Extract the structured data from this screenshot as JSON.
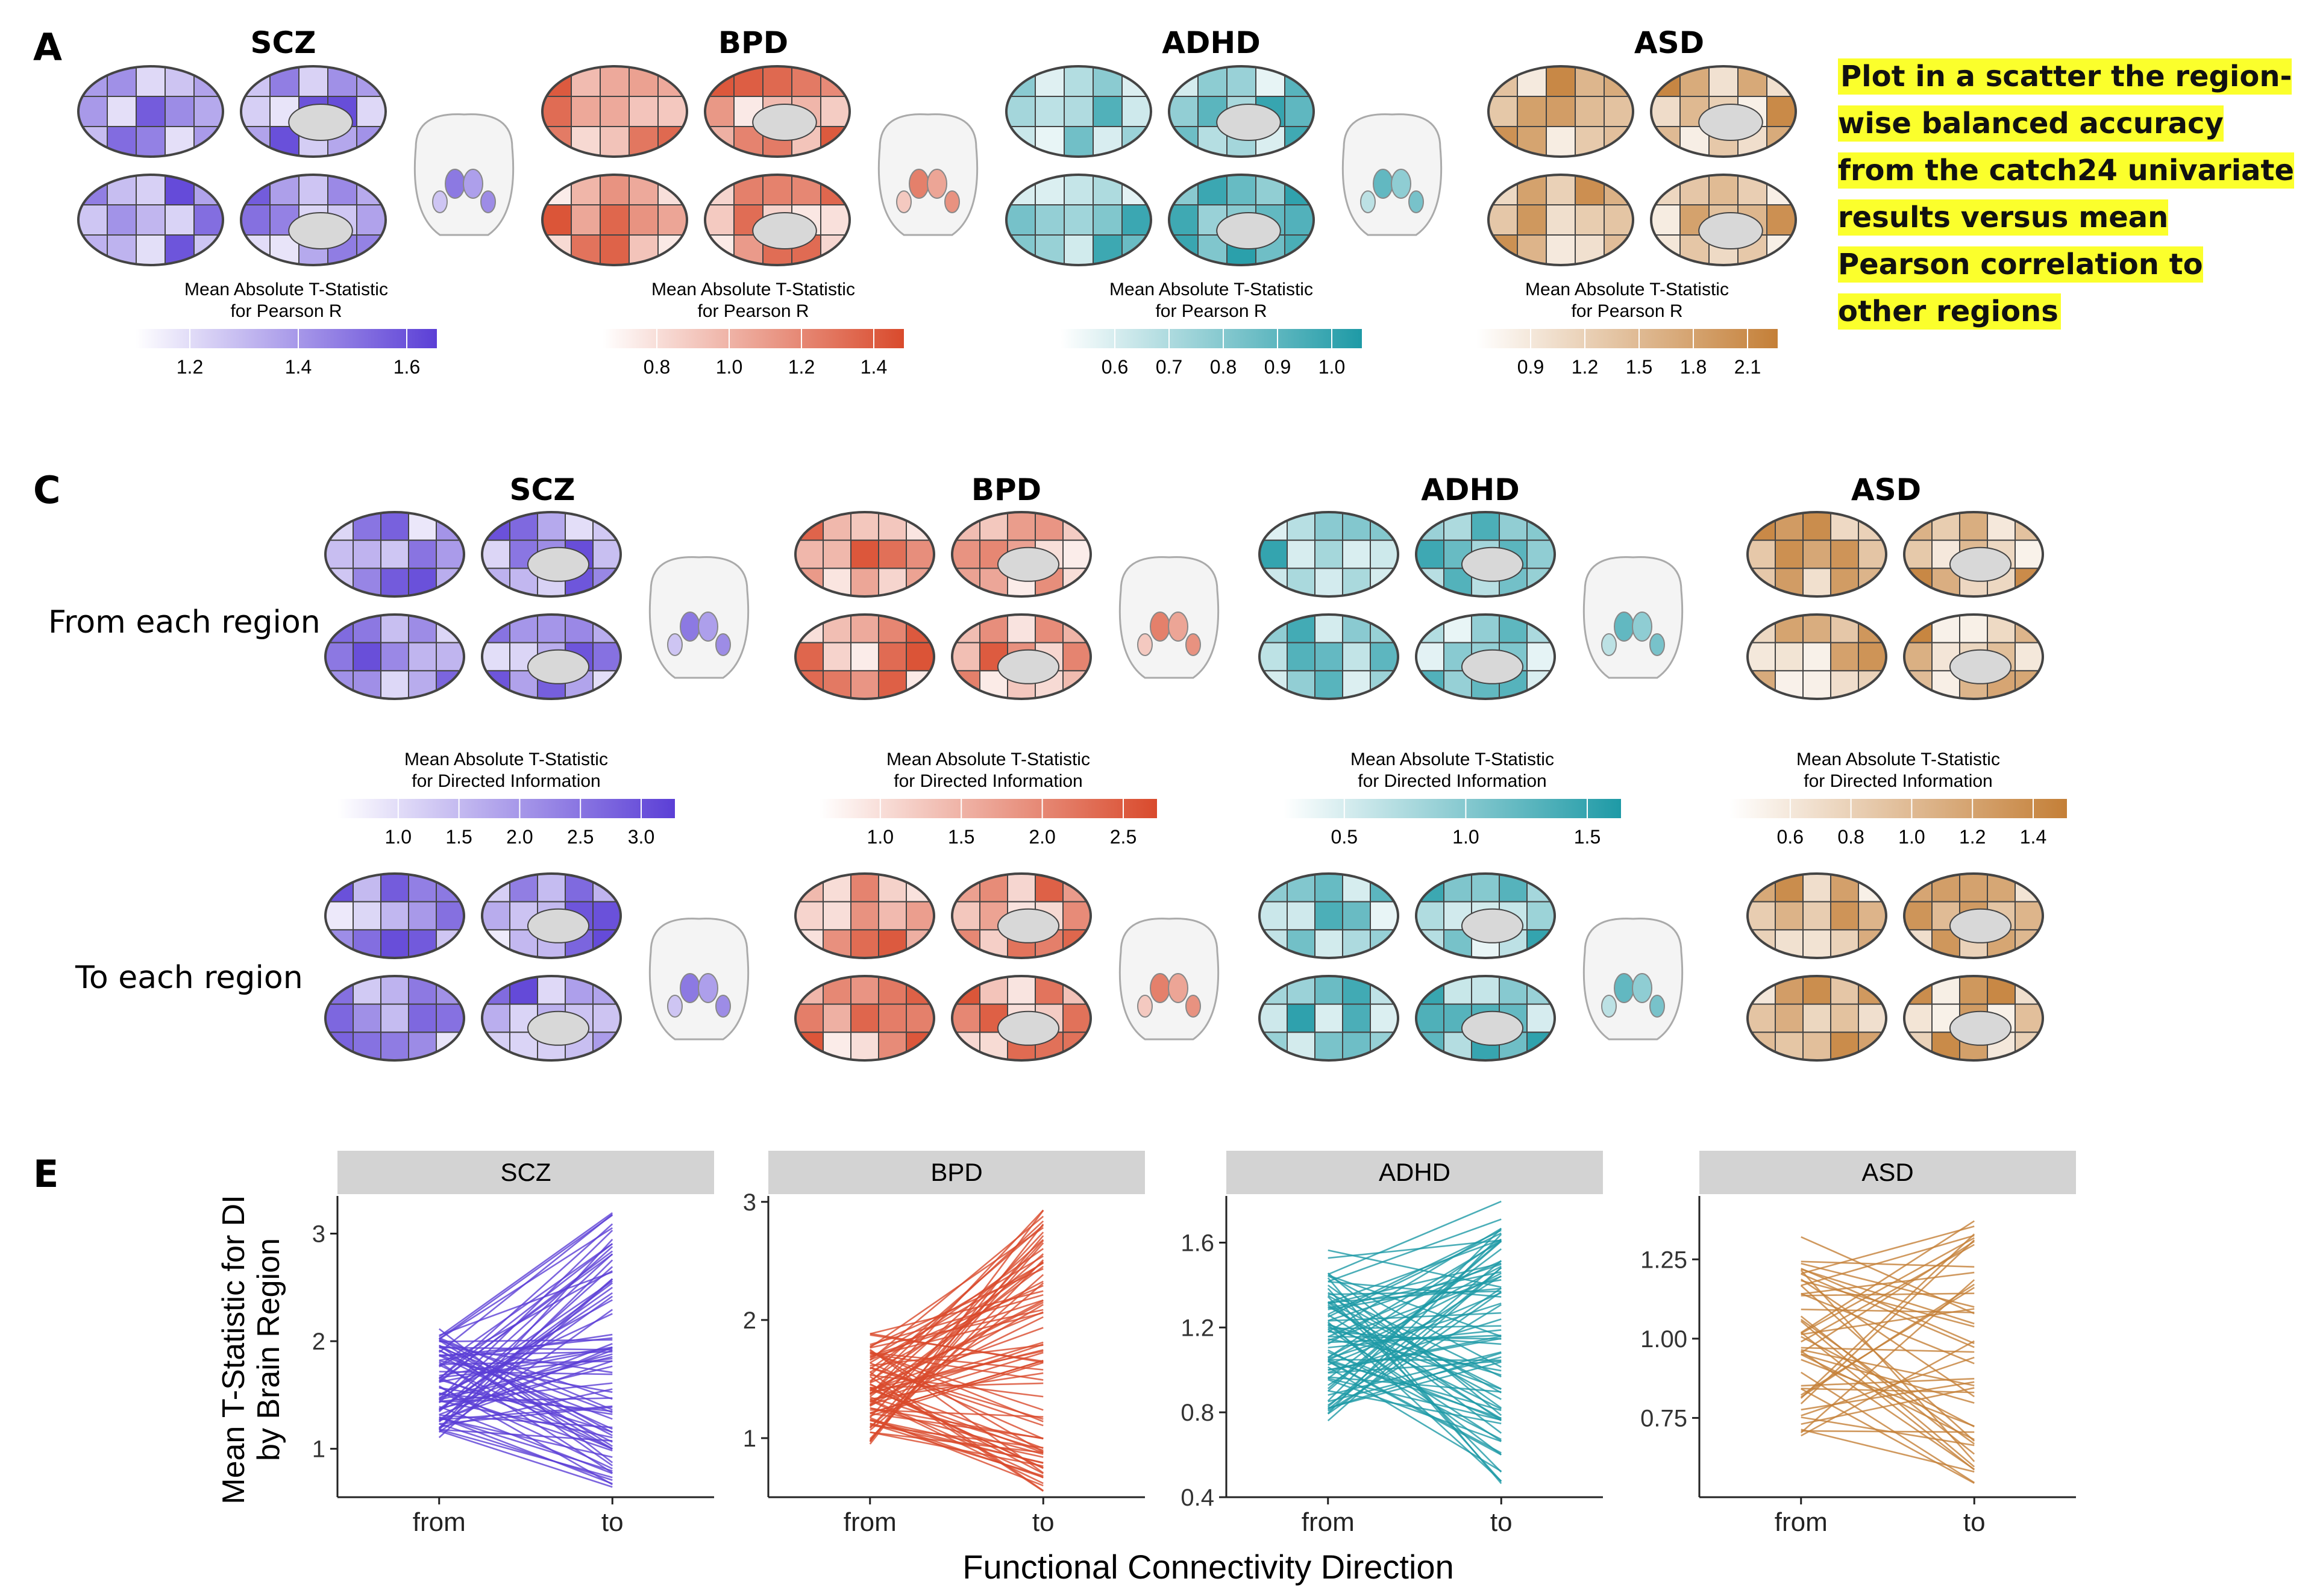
{
  "panels": {
    "a": {
      "letter": "A"
    },
    "c": {
      "letter": "C",
      "row_from": "From each region",
      "row_to": "To each region"
    },
    "e": {
      "letter": "E"
    }
  },
  "note": "Plot in a scatter the region-wise balanced accuracy from the catch24 univariate results versus mean Pearson correlation to other regions",
  "disorders": [
    "SCZ",
    "BPD",
    "ADHD",
    "ASD"
  ],
  "colors": {
    "SCZ": "#5b3fd6",
    "BPD": "#d94a2c",
    "ADHD": "#1e9aa6",
    "ASD": "#c47f37"
  },
  "panel_a_legends": [
    {
      "label1": "Mean Absolute T-Statistic",
      "label2": "for Pearson R",
      "ticks": [
        "1.2",
        "1.4",
        "1.6"
      ]
    },
    {
      "label1": "Mean Absolute T-Statistic",
      "label2": "for Pearson R",
      "ticks": [
        "0.8",
        "1.0",
        "1.2",
        "1.4"
      ]
    },
    {
      "label1": "Mean Absolute T-Statistic",
      "label2": "for Pearson R",
      "ticks": [
        "0.6",
        "0.7",
        "0.8",
        "0.9",
        "1.0"
      ]
    },
    {
      "label1": "Mean Absolute T-Statistic",
      "label2": "for Pearson R",
      "ticks": [
        "0.9",
        "1.2",
        "1.5",
        "1.8",
        "2.1"
      ]
    }
  ],
  "panel_c_legends": [
    {
      "label1": "Mean Absolute T-Statistic",
      "label2": "for Directed Information",
      "ticks": [
        "1.0",
        "1.5",
        "2.0",
        "2.5",
        "3.0"
      ]
    },
    {
      "label1": "Mean Absolute T-Statistic",
      "label2": "for Directed Information",
      "ticks": [
        "1.0",
        "1.5",
        "2.0",
        "2.5"
      ]
    },
    {
      "label1": "Mean Absolute T-Statistic",
      "label2": "for Directed Information",
      "ticks": [
        "0.5",
        "1.0",
        "1.5"
      ]
    },
    {
      "label1": "Mean Absolute T-Statistic",
      "label2": "for Directed Information",
      "ticks": [
        "0.6",
        "0.8",
        "1.0",
        "1.2",
        "1.4"
      ]
    }
  ],
  "chart_data": [
    {
      "type": "line",
      "facet": "SCZ",
      "categories": [
        "from",
        "to"
      ],
      "ylim": [
        0.55,
        3.35
      ],
      "yticks": [
        "1",
        "2",
        "3"
      ],
      "from_range": [
        0.95,
        2.35
      ],
      "to_range": [
        0.62,
        3.2
      ],
      "n_regions": 82,
      "ylabel": "Mean T-Statistic for DI by Brain Region",
      "xlabel": "Functional Connectivity Direction"
    },
    {
      "type": "line",
      "facet": "BPD",
      "categories": [
        "from",
        "to"
      ],
      "ylim": [
        0.5,
        3.05
      ],
      "yticks": [
        "1",
        "2",
        "3"
      ],
      "from_range": [
        0.8,
        2.07
      ],
      "to_range": [
        0.55,
        2.98
      ],
      "n_regions": 82
    },
    {
      "type": "line",
      "facet": "ADHD",
      "categories": [
        "from",
        "to"
      ],
      "ylim": [
        0.4,
        1.82
      ],
      "yticks": [
        "0.4",
        "0.8",
        "1.2",
        "1.6"
      ],
      "from_range": [
        0.62,
        1.65
      ],
      "to_range": [
        0.45,
        1.8
      ],
      "n_regions": 82
    },
    {
      "type": "line",
      "facet": "ASD",
      "categories": [
        "from",
        "to"
      ],
      "ylim": [
        0.5,
        1.45
      ],
      "yticks": [
        "0.75",
        "1.00",
        "1.25"
      ],
      "from_range": [
        0.58,
        1.41
      ],
      "to_range": [
        0.52,
        1.4
      ],
      "n_regions": 48
    }
  ]
}
